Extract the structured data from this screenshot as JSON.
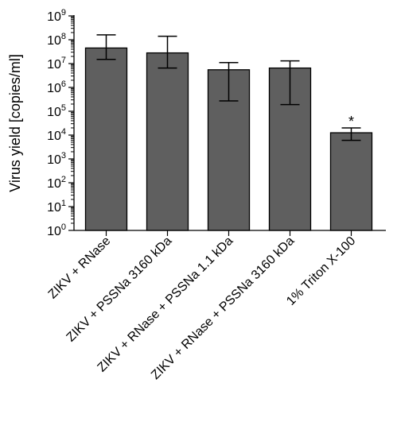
{
  "chart_data": {
    "type": "bar",
    "title": "",
    "xlabel": "",
    "ylabel": "Virus yield [copies/ml]",
    "yscale": "log10",
    "ylim": [
      1,
      1000000000
    ],
    "y_ticks": [
      {
        "value": 1,
        "base": "10",
        "exp": "0"
      },
      {
        "value": 10,
        "base": "10",
        "exp": "1"
      },
      {
        "value": 100,
        "base": "10",
        "exp": "2"
      },
      {
        "value": 1000,
        "base": "10",
        "exp": "3"
      },
      {
        "value": 10000,
        "base": "10",
        "exp": "4"
      },
      {
        "value": 100000,
        "base": "10",
        "exp": "5"
      },
      {
        "value": 1000000,
        "base": "10",
        "exp": "6"
      },
      {
        "value": 10000000,
        "base": "10",
        "exp": "7"
      },
      {
        "value": 100000000,
        "base": "10",
        "exp": "8"
      },
      {
        "value": 1000000000,
        "base": "10",
        "exp": "9"
      }
    ],
    "categories": [
      "ZIKV + RNase",
      "ZIKV + PSSNa 3160 kDa",
      "ZIKV + RNase + PSSNa 1.1 kDa",
      "ZIKV + RNase + PSSNa 3160 kDa",
      "1% Triton X-100"
    ],
    "values": [
      45000000,
      28000000,
      5500000,
      6500000,
      12500
    ],
    "error_upper": [
      160000000,
      140000000,
      11000000,
      13000000,
      20000
    ],
    "error_lower": [
      15000000,
      6500000,
      270000,
      190000,
      6000
    ],
    "annotations": [
      "",
      "",
      "",
      "",
      "*"
    ],
    "bar_color": "#5f5f5f",
    "grid": false,
    "legend": "none"
  }
}
